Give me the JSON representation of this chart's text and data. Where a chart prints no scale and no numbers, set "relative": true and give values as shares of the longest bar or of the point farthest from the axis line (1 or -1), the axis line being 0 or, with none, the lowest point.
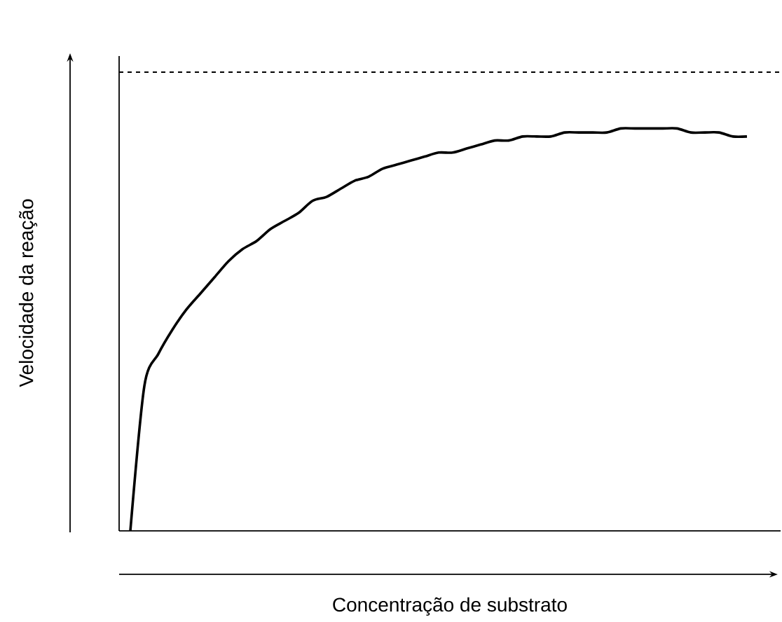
{
  "chart_data": {
    "type": "line",
    "relative": true,
    "xlabel": "Concentração de substrato",
    "ylabel": "Velocidade da reação",
    "categories": [
      null,
      null,
      null,
      null,
      null,
      null,
      null,
      null,
      null,
      null,
      null,
      null,
      null,
      null,
      null,
      null,
      null,
      null,
      null,
      null,
      null,
      null,
      null,
      null,
      null,
      null,
      null,
      null,
      null,
      null,
      null,
      null,
      null,
      null,
      null,
      null,
      null,
      null,
      null,
      null,
      null,
      null,
      null,
      null,
      null
    ],
    "series": [
      {
        "color": "#000000",
        "values": [
          0,
          0.36,
          0.44,
          0.5,
          0.55,
          0.59,
          0.63,
          0.67,
          0.7,
          0.72,
          0.75,
          0.77,
          0.79,
          0.82,
          0.83,
          0.85,
          0.87,
          0.88,
          0.9,
          0.91,
          0.92,
          0.93,
          0.94,
          0.94,
          0.95,
          0.96,
          0.97,
          0.97,
          0.98,
          0.98,
          0.98,
          0.99,
          0.99,
          0.99,
          0.99,
          1,
          1,
          1,
          1,
          1,
          0.99,
          0.99,
          0.99,
          0.98,
          0.98
        ]
      }
    ],
    "ref_lines": [
      {
        "axis": "y",
        "value": 1.14,
        "color": "#000000",
        "line_style": "dashed"
      }
    ],
    "marker": "none",
    "line_style": "solid"
  }
}
